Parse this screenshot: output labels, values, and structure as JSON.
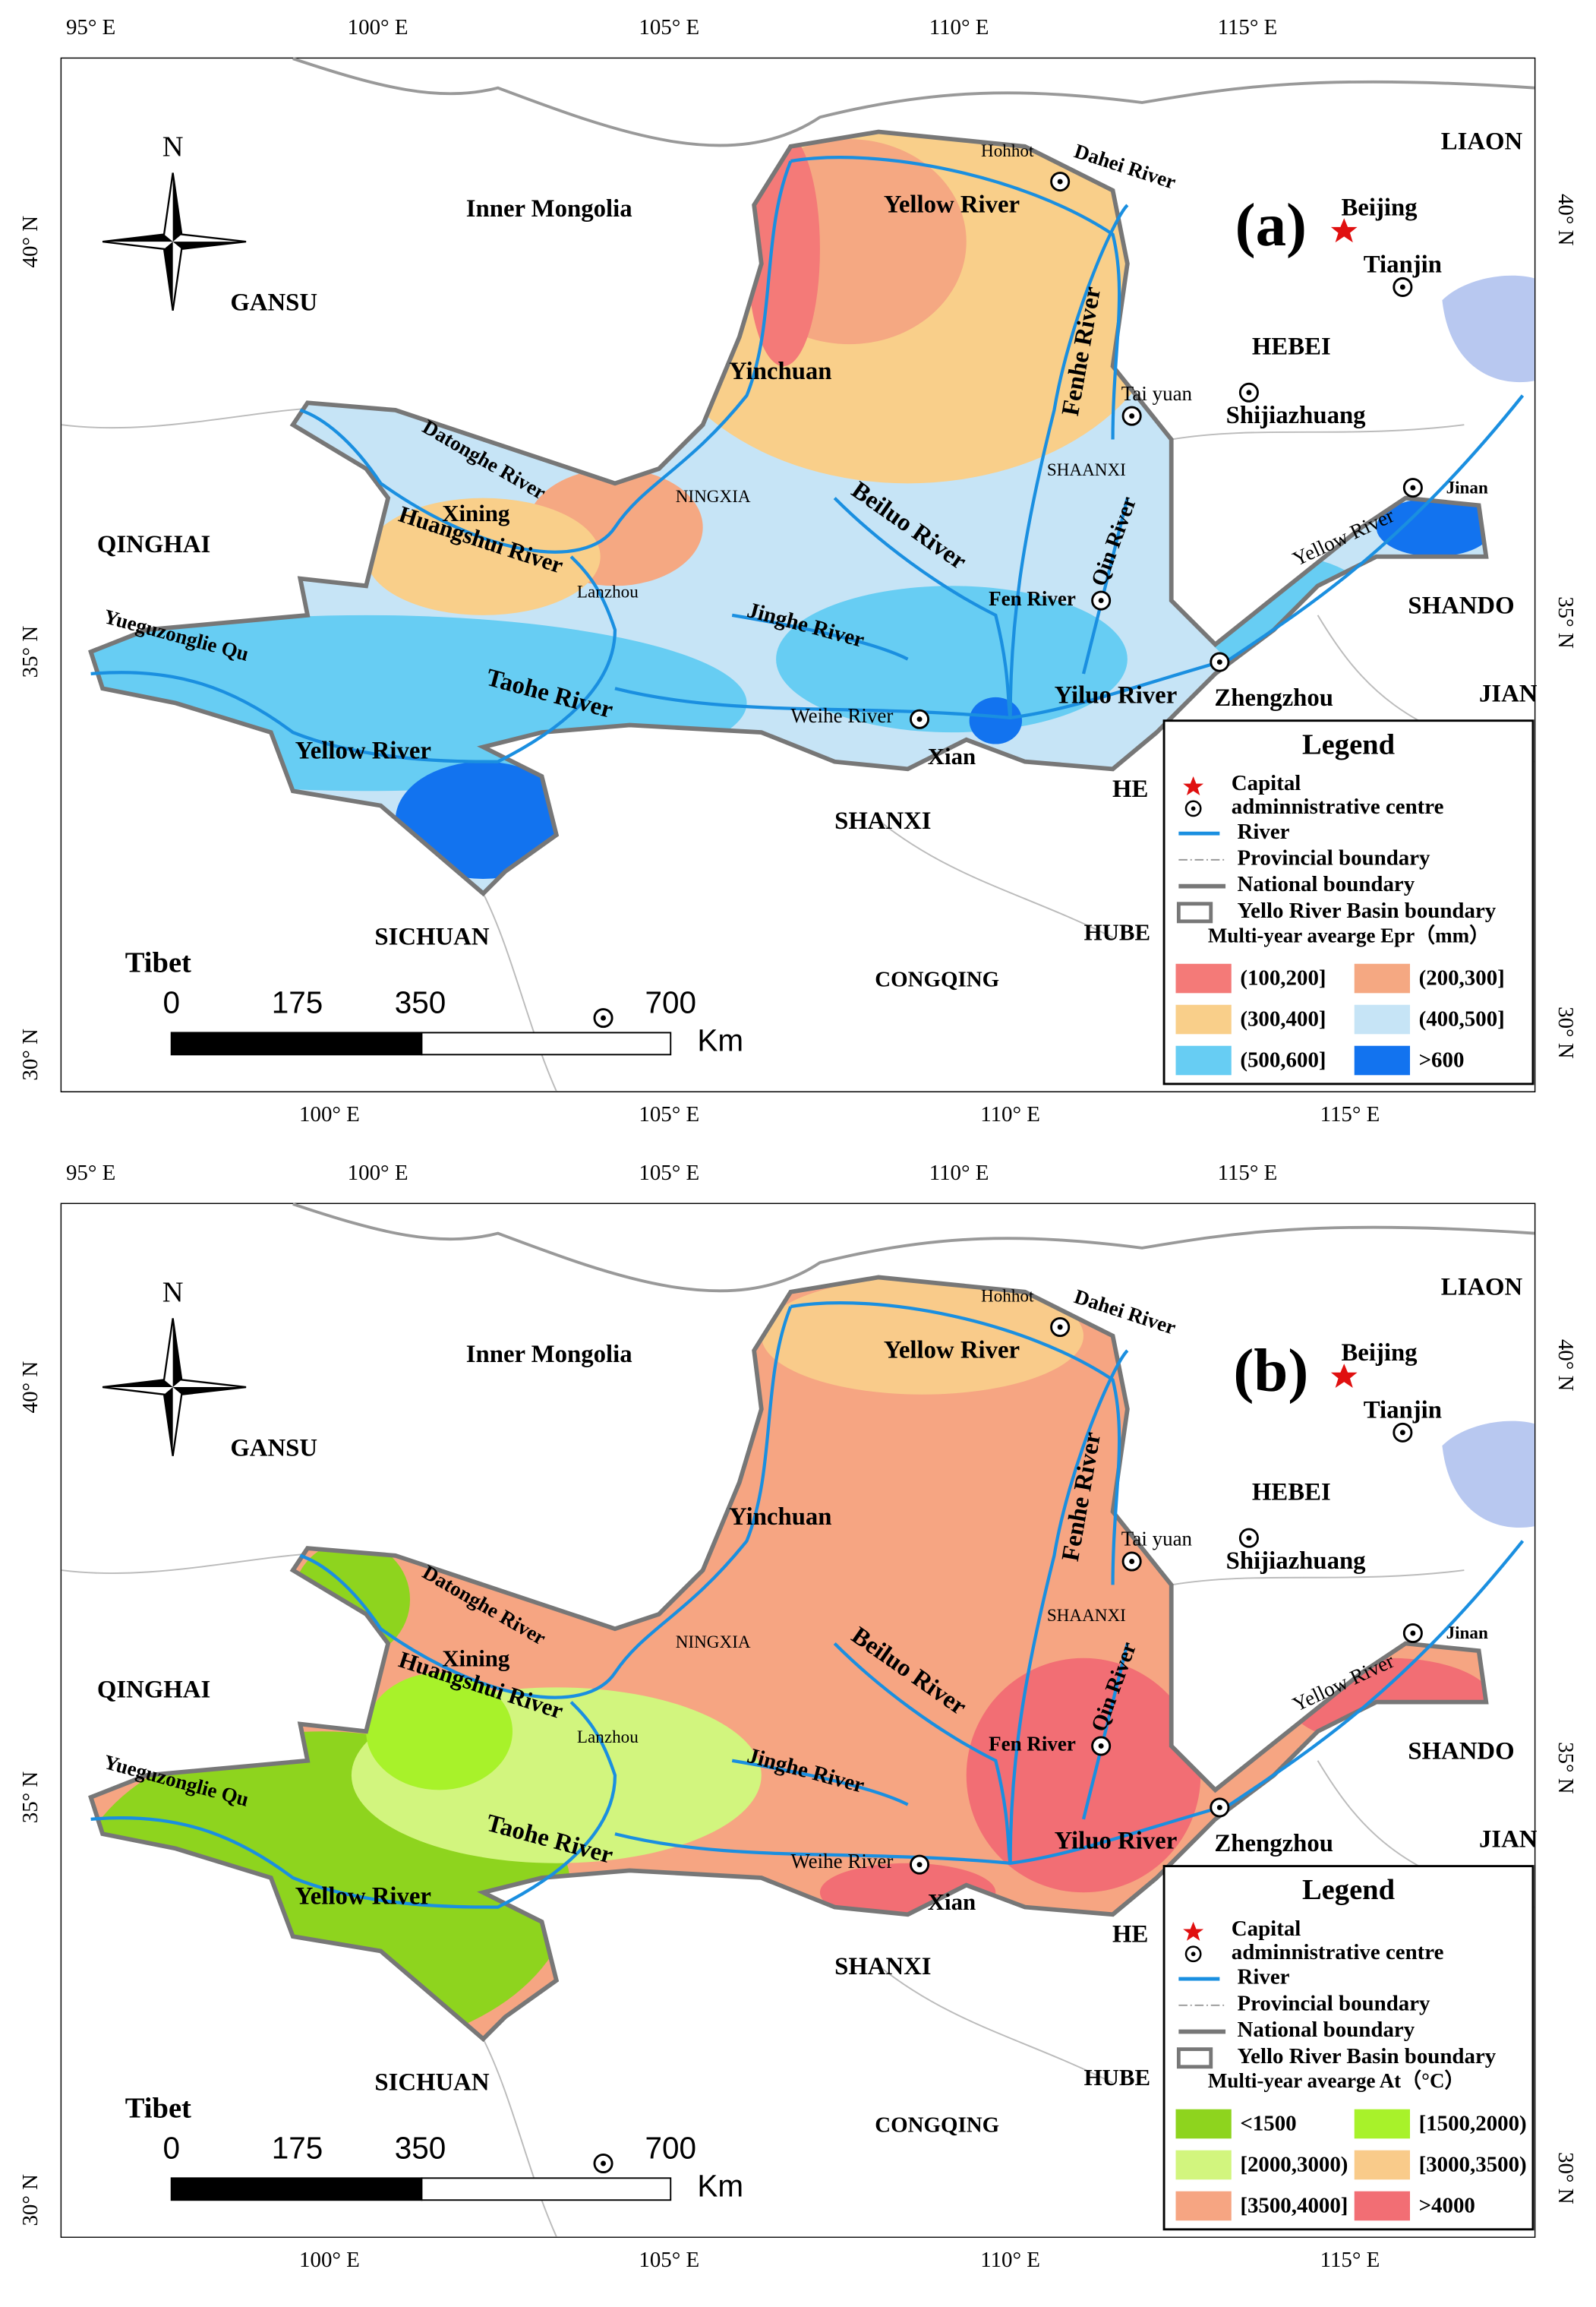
{
  "north": "N",
  "axes": {
    "top": [
      "95° E",
      "100° E",
      "105° E",
      "110° E",
      "115° E"
    ],
    "bottom": [
      "100° E",
      "105° E",
      "110° E",
      "115° E"
    ],
    "left": [
      "40° N",
      "35° N",
      "30° N"
    ],
    "right": [
      "40° N",
      "35° N",
      "30° N"
    ]
  },
  "map_labels": [
    "Inner Mongolia",
    "GANSU",
    "QINGHAI",
    "SICHUAN",
    "Tibet",
    "SHANXI",
    "HUBE",
    "CONGQING",
    "HEBEI",
    "Shijiazhuang",
    "Beijing",
    "Tianjin",
    "LIAON",
    "SHANDO",
    "JIAN",
    "HE",
    "Hohhot",
    "Dahei River",
    "Yellow River",
    "Yinchuan",
    "Fenhe River",
    "Tai yuan",
    "SHAANXI",
    "NINGXIA",
    "Datonghe River",
    "Xining",
    "Huangshui River",
    "Lanzhou",
    "Beiluo River",
    "Qin River",
    "Yellow River",
    "Jinan",
    "Fen River",
    "Jinghe River",
    "Yueguzonglie Qu",
    "Taohe River",
    "Weihe River",
    "Yiluo River",
    "Zhengzhou",
    "Xian",
    "Yellow River"
  ],
  "scale_bar": {
    "labels": [
      "0",
      "175",
      "350",
      "700"
    ],
    "unit": "Km"
  },
  "panels": [
    {
      "label": "(a)",
      "legend": {
        "title": "Legend",
        "entries": [
          "Capital",
          "adminnistrative centre",
          "River",
          "Provincial boundary",
          "National boundary",
          "Yello River Basin boundary"
        ],
        "scale_title": "Multi-year avearge Epr（mm）",
        "classes": [
          {
            "label": "(100,200]",
            "color": "#f47a78"
          },
          {
            "label": "(200,300]",
            "color": "#f5a882"
          },
          {
            "label": "(300,400]",
            "color": "#f9cf8a"
          },
          {
            "label": "(400,500]",
            "color": "#c6e4f6"
          },
          {
            "label": "(500,600]",
            "color": "#67cdf3"
          },
          {
            "label": ">600",
            "color": "#1273ef"
          }
        ]
      }
    },
    {
      "label": "(b)",
      "legend": {
        "title": "Legend",
        "entries": [
          "Capital",
          "adminnistrative centre",
          "River",
          "Provincial boundary",
          "National boundary",
          "Yello River Basin boundary"
        ],
        "scale_title": "Multi-year avearge At（°C）",
        "classes": [
          {
            "label": "<1500",
            "color": "#8ed41e"
          },
          {
            "label": "[1500,2000)",
            "color": "#a8f22a"
          },
          {
            "label": "[2000,3000)",
            "color": "#d2f57e"
          },
          {
            "label": "[3000,3500)",
            "color": "#f9cb8a"
          },
          {
            "label": "[3500,4000]",
            "color": "#f6a582"
          },
          {
            "label": ">4000",
            "color": "#f26e74"
          }
        ]
      }
    }
  ]
}
